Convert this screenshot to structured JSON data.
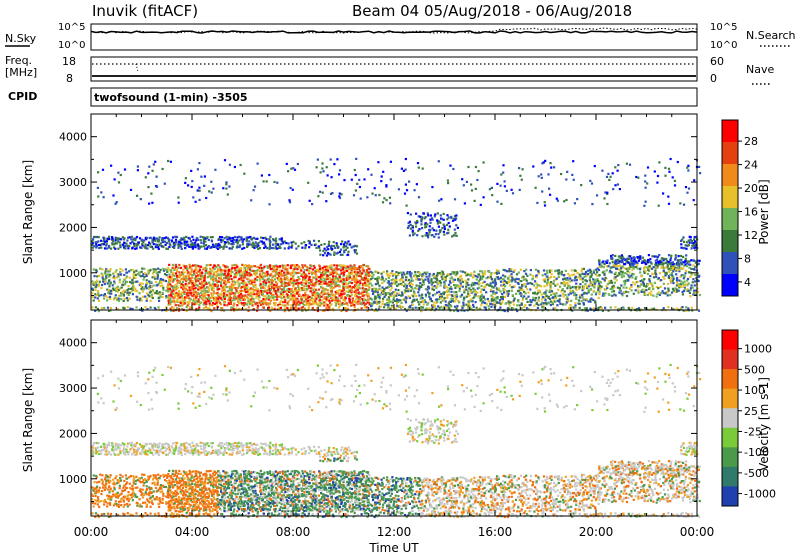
{
  "header": {
    "station": "Inuvik (fitACF)",
    "beam_date": "Beam 04 05/Aug/2018 - 06/Aug/2018"
  },
  "top_panels": {
    "nsky_label": "N.Sky",
    "nsky_ticks": [
      "10^5",
      "10^0"
    ],
    "nsearch_label": "N.Search",
    "nsearch_ticks": [
      "10^5",
      "10^0"
    ],
    "freq_label": "Freq.",
    "freq_unit": "[MHz]",
    "freq_ticks": [
      "18",
      "8"
    ],
    "nave_label": "Nave",
    "nave_ticks": [
      "60",
      "0"
    ],
    "cpid_label": "CPID",
    "cpid_value": "twofsound (1-min) -3505"
  },
  "chart_data": [
    {
      "type": "heatmap",
      "panel": "power",
      "ylabel": "Slant Range [km]",
      "yticks": [
        "4000",
        "3000",
        "2000",
        "1000"
      ],
      "ylim": [
        180,
        4500
      ],
      "xlabel": "Time UT",
      "xticks": [
        "00:00",
        "04:00",
        "08:00",
        "12:00",
        "16:00",
        "20:00",
        "00:00"
      ],
      "xlim_hours": [
        0,
        24
      ],
      "colorbar": {
        "label": "Power [dB]",
        "ticks": [
          "28",
          "24",
          "20",
          "16",
          "12",
          "8",
          "4"
        ],
        "range": [
          0,
          30
        ],
        "colors": [
          "#0000ff",
          "#2f52b8",
          "#3a7a3a",
          "#6fb35a",
          "#e8c02a",
          "#f08a1a",
          "#e64010",
          "#ff0000"
        ]
      }
    },
    {
      "type": "heatmap",
      "panel": "velocity",
      "ylabel": "Slant Range [km]",
      "yticks": [
        "4000",
        "3000",
        "2000",
        "1000"
      ],
      "ylim": [
        180,
        4500
      ],
      "xlabel": "Time UT",
      "xticks": [
        "00:00",
        "04:00",
        "08:00",
        "12:00",
        "16:00",
        "20:00",
        "00:00"
      ],
      "xlim_hours": [
        0,
        24
      ],
      "colorbar": {
        "label": "Velocity [m s-1]",
        "ticks": [
          "1000",
          "500",
          "100",
          "25",
          "-25",
          "-100",
          "-500",
          "-1000"
        ],
        "colors": [
          "#2040b0",
          "#2f7a6a",
          "#4a9a4a",
          "#7acb3a",
          "#c8c8c8",
          "#f0a020",
          "#f07010",
          "#e03020",
          "#ff0000"
        ]
      }
    }
  ],
  "bands": [
    {
      "t0": 0.0,
      "t1": 7.5,
      "r0": 1550,
      "r1": 1800,
      "density": 0.75
    },
    {
      "t0": 7.5,
      "t1": 9.0,
      "r0": 1550,
      "r1": 1700,
      "density": 0.45
    },
    {
      "t0": 9.0,
      "t1": 10.5,
      "r0": 1400,
      "r1": 1700,
      "density": 0.55
    },
    {
      "t0": 12.5,
      "t1": 14.5,
      "r0": 1800,
      "r1": 2300,
      "density": 0.35
    },
    {
      "t0": 20.5,
      "t1": 23.5,
      "r0": 1100,
      "r1": 1400,
      "density": 0.6
    },
    {
      "t0": 23.3,
      "t1": 24.0,
      "r0": 1550,
      "r1": 1800,
      "density": 0.6
    },
    {
      "t0": 0.0,
      "t1": 3.0,
      "r0": 400,
      "r1": 1100,
      "density": 0.5
    },
    {
      "t0": 3.0,
      "t1": 11.0,
      "r0": 300,
      "r1": 1200,
      "density": 0.85
    },
    {
      "t0": 11.0,
      "t1": 16.0,
      "r0": 250,
      "r1": 1050,
      "density": 0.55
    },
    {
      "t0": 16.0,
      "t1": 20.0,
      "r0": 300,
      "r1": 1100,
      "density": 0.5
    },
    {
      "t0": 20.0,
      "t1": 24.0,
      "r0": 500,
      "r1": 1300,
      "density": 0.45
    },
    {
      "t0": 0.0,
      "t1": 24.0,
      "r0": 180,
      "r1": 260,
      "density": 0.5
    },
    {
      "t0": 0.0,
      "t1": 24.0,
      "r0": 2500,
      "r1": 3500,
      "density": 0.04
    }
  ]
}
